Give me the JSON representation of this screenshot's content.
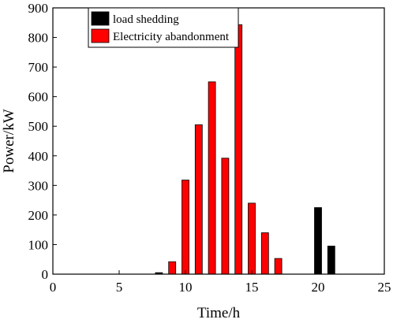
{
  "chart_data": {
    "type": "bar",
    "title": "",
    "xlabel": "Time/h",
    "ylabel": "Power/kW",
    "xlim": [
      0,
      25
    ],
    "ylim": [
      0,
      900
    ],
    "x_ticks": [
      0,
      5,
      10,
      15,
      20,
      25
    ],
    "y_ticks": [
      0,
      100,
      200,
      300,
      400,
      500,
      600,
      700,
      800,
      900
    ],
    "grid": false,
    "legend_position": "top-center",
    "series": [
      {
        "name": "load shedding",
        "color": "#000000",
        "points": [
          {
            "x": 8,
            "y": 5
          },
          {
            "x": 20,
            "y": 225
          },
          {
            "x": 21,
            "y": 95
          }
        ]
      },
      {
        "name": "Electricity abandonment",
        "color": "#ff0000",
        "points": [
          {
            "x": 9,
            "y": 42
          },
          {
            "x": 10,
            "y": 318
          },
          {
            "x": 11,
            "y": 505
          },
          {
            "x": 12,
            "y": 650
          },
          {
            "x": 13,
            "y": 392
          },
          {
            "x": 14,
            "y": 843
          },
          {
            "x": 15,
            "y": 240
          },
          {
            "x": 16,
            "y": 140
          },
          {
            "x": 17,
            "y": 53
          }
        ]
      }
    ]
  }
}
